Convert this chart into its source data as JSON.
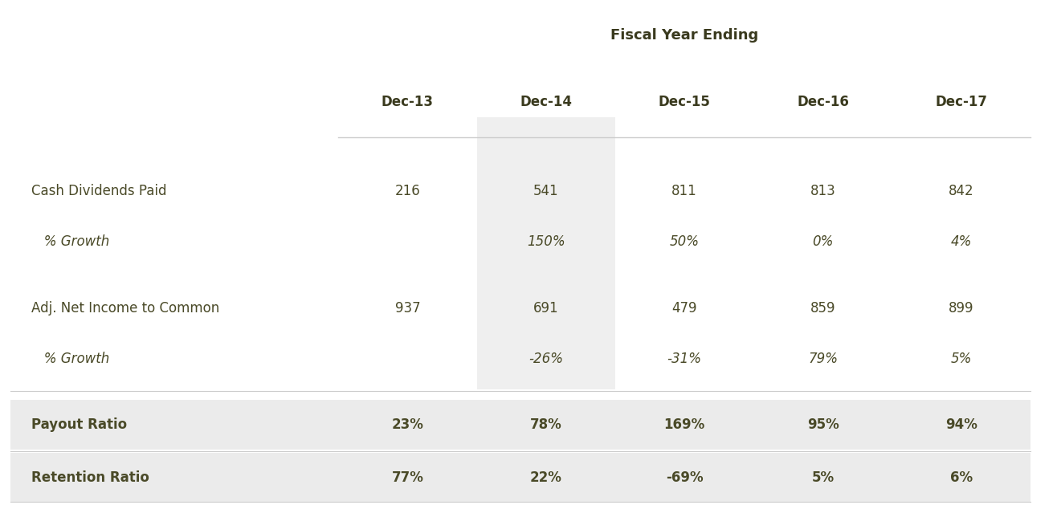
{
  "title": "Fiscal Year Ending",
  "columns": [
    "Dec-13",
    "Dec-14",
    "Dec-15",
    "Dec-16",
    "Dec-17"
  ],
  "rows": [
    {
      "label": "Cash Dividends Paid",
      "values": [
        "216",
        "541",
        "811",
        "813",
        "842"
      ],
      "bold": false,
      "italic": false
    },
    {
      "label": "   % Growth",
      "values": [
        "",
        "150%",
        "50%",
        "0%",
        "4%"
      ],
      "bold": false,
      "italic": true
    },
    {
      "label": "Adj. Net Income to Common",
      "values": [
        "937",
        "691",
        "479",
        "859",
        "899"
      ],
      "bold": false,
      "italic": false
    },
    {
      "label": "   % Growth",
      "values": [
        "",
        "-26%",
        "-31%",
        "79%",
        "5%"
      ],
      "bold": false,
      "italic": true
    },
    {
      "label": "Payout Ratio",
      "values": [
        "23%",
        "78%",
        "169%",
        "95%",
        "94%"
      ],
      "bold": true,
      "italic": false
    },
    {
      "label": "Retention Ratio",
      "values": [
        "77%",
        "22%",
        "-69%",
        "5%",
        "6%"
      ],
      "bold": true,
      "italic": false
    }
  ],
  "shaded_col_bg": "#efefef",
  "ratio_row_bg": "#ebebeb",
  "text_color": "#4a4a28",
  "header_color": "#3a3a1e",
  "separator_color": "#cccccc",
  "bg_color": "#ffffff",
  "title_fontsize": 13,
  "header_fontsize": 12,
  "cell_fontsize": 12,
  "fig_width": 13.16,
  "fig_height": 6.34
}
